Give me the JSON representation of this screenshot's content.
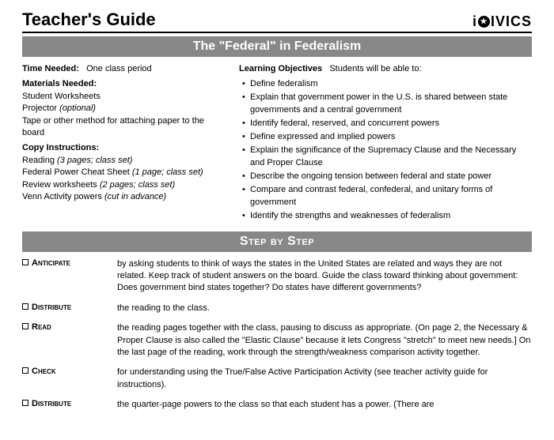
{
  "header": {
    "title": "Teacher's Guide",
    "logo_prefix": "i",
    "logo_text": "IVICS"
  },
  "lesson_title": "The \"Federal\" in Federalism",
  "left": {
    "time_label": "Time Needed:",
    "time_value": "One class period",
    "materials_label": "Materials Needed:",
    "materials": [
      {
        "text": "Student Worksheets",
        "italic": false
      },
      {
        "text": "Projector (optional)",
        "italic": false,
        "italic_part": "(optional)",
        "plain_part": "Projector "
      },
      {
        "text": "Tape or other method for attaching paper to the board",
        "italic": false
      }
    ],
    "copy_label": "Copy Instructions:",
    "copy": [
      {
        "plain": "Reading ",
        "ital": "(3 pages; class set)"
      },
      {
        "plain": "Federal Power Cheat Sheet ",
        "ital": "(1 page; class set)"
      },
      {
        "plain": "Review worksheets ",
        "ital": "(2 pages; class set)"
      },
      {
        "plain": "Venn Activity powers ",
        "ital": "(cut in advance)"
      }
    ]
  },
  "right": {
    "objectives_label": "Learning Objectives",
    "objectives_tail": "Students will be able to:",
    "objectives": [
      "Define federalism",
      "Explain that government power in the U.S. is shared between state governments and a central government",
      "Identify federal, reserved, and concurrent powers",
      "Define expressed and implied powers",
      "Explain the significance of the Supremacy Clause and the Necessary and Proper Clause",
      "Describe the ongoing tension between federal and state power",
      "Compare and contrast federal, confederal, and unitary forms of government",
      "Identify the strengths and weaknesses of federalism"
    ]
  },
  "step_title": "Step by Step",
  "steps": [
    {
      "label": "Anticipate",
      "body": "by asking students  to think of ways the states in the United States are related and ways they are not related. Keep track of student answers on the board. Guide the class toward thinking about government: Does government bind states together? Do states have different governments?"
    },
    {
      "label": "Distribute",
      "body": "the reading to the class."
    },
    {
      "label": "Read",
      "body": "the reading pages together with the class, pausing to discuss as appropriate. (On page 2, the Necessary & Proper Clause is also called the \"Elastic Clause\" because it lets Congress \"stretch\" to meet new needs.] On the last page of the reading, work through the strength/weakness comparison activity together."
    },
    {
      "label": "Check",
      "body": "for understanding using the True/False Active Participation Activity (see teacher activity guide for instructions)."
    },
    {
      "label": "Distribute",
      "body": "the quarter-page powers to the class so that each student has a power. (There are"
    }
  ],
  "colors": {
    "banner_bg": "#888888",
    "banner_fg": "#ffffff",
    "text": "#000000"
  }
}
